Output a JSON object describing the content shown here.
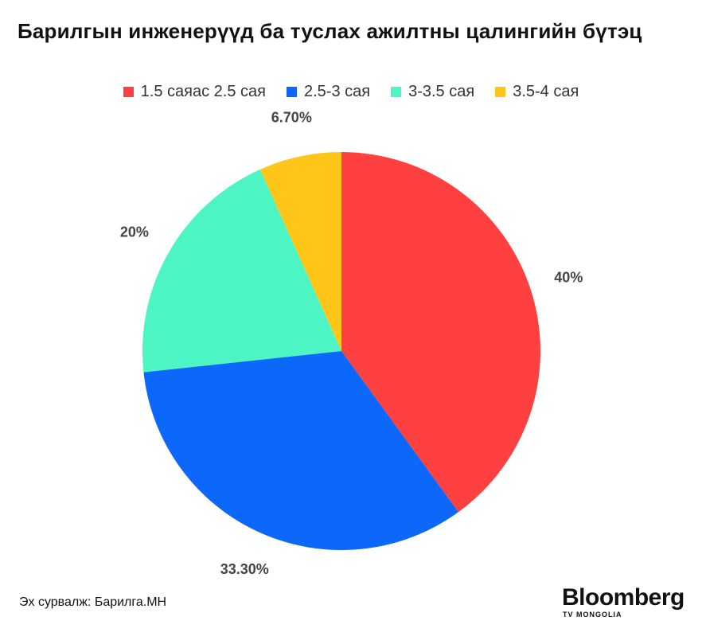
{
  "title": "Барилгын инженерүүд ба туслах ажилтны цалингийн бүтэц",
  "source_note": "Эх сурвалж: Барилга.МН",
  "logo": {
    "main": "Bloomberg",
    "sub": "TV MONGOLIA"
  },
  "chart_data": {
    "type": "pie",
    "title": "Барилгын инженерүүд ба туслах ажилтны цалингийн бүтэц",
    "legend_position": "top",
    "start_angle_deg": 0,
    "direction": "clockwise",
    "slices": [
      {
        "label": "1.5 саяас 2.5 сая",
        "value": 40,
        "value_label": "40%",
        "color": "#ff4040"
      },
      {
        "label": "2.5-3 сая",
        "value": 33.3,
        "value_label": "33.30%",
        "color": "#0b68fb"
      },
      {
        "label": "3-3.5 сая",
        "value": 20,
        "value_label": "20%",
        "color": "#4ef5c4"
      },
      {
        "label": "3.5-4 сая",
        "value": 6.7,
        "value_label": "6.70%",
        "color": "#ffc619"
      }
    ]
  }
}
